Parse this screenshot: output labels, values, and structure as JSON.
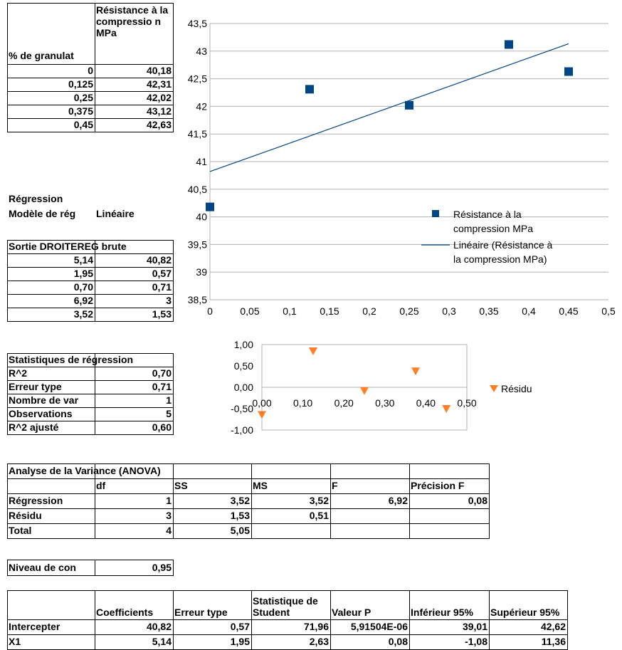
{
  "data_table": {
    "header_x": "% de granulat",
    "header_y": "Résistance à la compressio n MPa",
    "rows": [
      [
        "0",
        "40,18"
      ],
      [
        "0,125",
        "42,31"
      ],
      [
        "0,25",
        "42,02"
      ],
      [
        "0,375",
        "43,12"
      ],
      [
        "0,45",
        "42,63"
      ]
    ]
  },
  "regression_header": {
    "title": "Régression",
    "model_label": "Modèle de rég",
    "model_value": "Linéaire"
  },
  "linest": {
    "title": "Sortie DROITEREG brute",
    "rows": [
      [
        "5,14",
        "40,82"
      ],
      [
        "1,95",
        "0,57"
      ],
      [
        "0,70",
        "0,71"
      ],
      [
        "6,92",
        "3"
      ],
      [
        "3,52",
        "1,53"
      ]
    ]
  },
  "reg_stats": {
    "title": "Statistiques de régression",
    "rows": [
      [
        "R^2",
        "0,70"
      ],
      [
        "Erreur type",
        "0,71"
      ],
      [
        "Nombre de var",
        "1"
      ],
      [
        "Observations",
        "5"
      ],
      [
        "R^2 ajusté",
        "0,60"
      ]
    ]
  },
  "anova": {
    "title": "Analyse de la Variance (ANOVA)",
    "headers": [
      "",
      "df",
      "SS",
      "MS",
      "F",
      "Précision F"
    ],
    "rows": [
      [
        "Régression",
        "1",
        "3,52",
        "3,52",
        "6,92",
        "0,08"
      ],
      [
        "Résidu",
        "3",
        "1,53",
        "0,51",
        "",
        ""
      ],
      [
        "Total",
        "4",
        "5,05",
        "",
        "",
        ""
      ]
    ]
  },
  "confidence": {
    "label": "Niveau de con",
    "value": "0,95"
  },
  "coefficients": {
    "headers": [
      "",
      "Coefficients",
      "Erreur type",
      "Statistique de Student",
      "Valeur P",
      "Inférieur 95%",
      "Supérieur 95%"
    ],
    "rows": [
      [
        "Intercepter",
        "40,82",
        "0,57",
        "71,96",
        "5,91504E-06",
        "39,01",
        "42,62"
      ],
      [
        "X1",
        "5,14",
        "1,95",
        "2,63",
        "0,08",
        "-1,08",
        "11,36"
      ]
    ]
  },
  "chart_data": [
    {
      "type": "scatter",
      "x": [
        0,
        0.125,
        0.25,
        0.375,
        0.45
      ],
      "y": [
        40.18,
        42.31,
        42.02,
        43.12,
        42.63
      ],
      "trendline": {
        "intercept": 40.82,
        "slope": 5.14
      },
      "xlim": [
        0,
        0.5
      ],
      "ylim": [
        38.5,
        43.5
      ],
      "xticks": [
        "0",
        "0,05",
        "0,1",
        "0,15",
        "0,2",
        "0,25",
        "0,3",
        "0,35",
        "0,4",
        "0,45",
        "0,5"
      ],
      "yticks": [
        "38,5",
        "39",
        "39,5",
        "40",
        "40,5",
        "41",
        "41,5",
        "42",
        "42,5",
        "43",
        "43,5"
      ],
      "legend": [
        "Résistance à la compression MPa",
        "Linéaire (Résistance à la compression MPa)"
      ],
      "legend_lines": [
        [
          "Résistance à la",
          "compression MPa"
        ],
        [
          "Linéaire (Résistance à",
          "la compression MPa)"
        ]
      ],
      "grid": true,
      "colors": {
        "points": "#004586",
        "line": "#004586",
        "grid": "#b3b3b3"
      }
    },
    {
      "type": "scatter",
      "x": [
        0,
        0.125,
        0.25,
        0.375,
        0.45
      ],
      "y": [
        -0.64,
        0.85,
        -0.08,
        0.38,
        -0.5
      ],
      "xlim": [
        0,
        0.5
      ],
      "ylim": [
        -1,
        1
      ],
      "xticks": [
        "0,00",
        "0,10",
        "0,20",
        "0,30",
        "0,40",
        "0,50"
      ],
      "yticks": [
        "-1,00",
        "-0,50",
        "0,00",
        "0,50",
        "1,00"
      ],
      "legend": [
        "Résidu"
      ],
      "grid": false,
      "colors": {
        "points": "#ff7f27"
      }
    }
  ]
}
